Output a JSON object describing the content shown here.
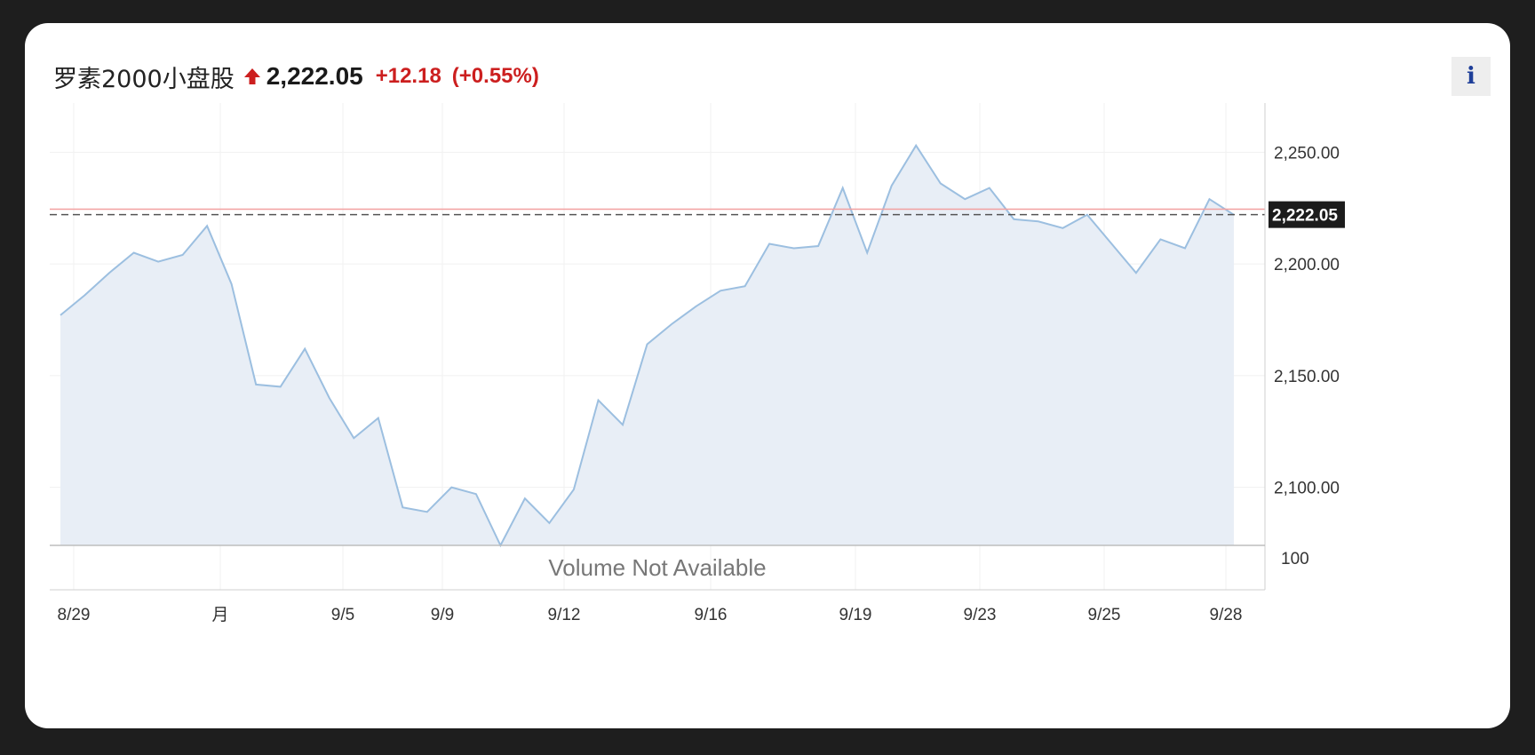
{
  "header": {
    "name": "罗素2000小盘股",
    "price": "2,222.05",
    "change": "+12.18",
    "change_pct": "(+0.55%)",
    "up_color": "#cc1f1f",
    "direction_icon": "arrow-up-icon",
    "info_label": "i",
    "info_color": "#1f3f99"
  },
  "chart_data": {
    "type": "area",
    "x_ticks": [
      "8/29",
      "月",
      "9/5",
      "9/9",
      "9/12",
      "9/16",
      "9/19",
      "9/23",
      "9/25",
      "9/28"
    ],
    "y_ticks": [
      "2,250.00",
      "2,200.00",
      "2,150.00",
      "2,100.00"
    ],
    "ylim": [
      2074,
      2272
    ],
    "y_tick_values": [
      2250,
      2200,
      2150,
      2100
    ],
    "series": [
      {
        "values": [
          2177,
          2186,
          2196,
          2205,
          2201,
          2204,
          2217,
          2191,
          2146,
          2145,
          2162,
          2140,
          2122,
          2131,
          2091,
          2089,
          2100,
          2097,
          2074,
          2095,
          2084,
          2099,
          2139,
          2128,
          2164,
          2173,
          2181,
          2188,
          2190,
          2209,
          2207,
          2208,
          2234,
          2205,
          2235,
          2253,
          2236,
          2229,
          2234,
          2220,
          2219,
          2216,
          2222,
          2209,
          2196,
          2211,
          2207,
          2229,
          2222
        ],
        "line_color": "#9cbfe0",
        "fill_color": "#e8eef6"
      }
    ],
    "last_value": 2222.05,
    "last_value_label": "2,222.05",
    "reference_value": 2224.5,
    "reference_color": "#f2a0a0",
    "grid": true,
    "volume_text": "Volume Not Available",
    "volume_tick": "100"
  }
}
